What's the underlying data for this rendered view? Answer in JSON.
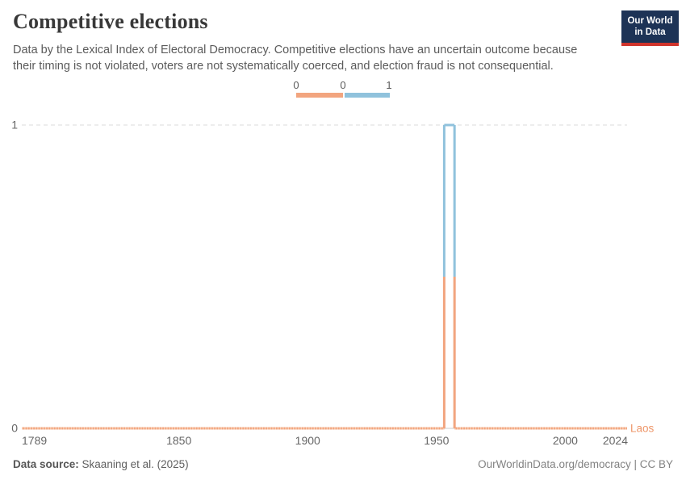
{
  "header": {
    "title": "Competitive elections",
    "subtitle": "Data by the Lexical Index of Electoral Democracy. Competitive elections have an uncertain outcome because their timing is not violated, voters are not systematically coerced, and election fraud is not consequential.",
    "logo": {
      "line1": "Our World",
      "line2": "in Data",
      "bg_color": "#1d3356",
      "accent_color": "#d0342c"
    }
  },
  "legend": {
    "edge_labels": [
      "0",
      "0",
      "1"
    ],
    "segments": [
      {
        "value": "0",
        "color": "#F2A57F"
      },
      {
        "value": "1",
        "color": "#90C2DC"
      }
    ]
  },
  "chart_data": {
    "type": "line",
    "title": "Competitive elections",
    "entity": "Laos",
    "xlim": [
      1789,
      2024
    ],
    "ylim": [
      0,
      1
    ],
    "x_ticks": [
      1789,
      1850,
      1900,
      1950,
      2000,
      2024
    ],
    "y_ticks": [
      0,
      1
    ],
    "grid": "dashed-top-solid-zero",
    "legend_position": "top-center",
    "series": [
      {
        "name": "Laos",
        "steps": [
          {
            "from": 1789,
            "to": 1953,
            "value": 0
          },
          {
            "from": 1953,
            "to": 1957,
            "value": 1
          },
          {
            "from": 1957,
            "to": 2024,
            "value": 0
          }
        ]
      }
    ],
    "value_colors": {
      "0": "#F2A57F",
      "1": "#90C2DC"
    },
    "texture_color": "#F9CDB2",
    "entity_label_color": "#EE9669",
    "gridline_color": "#DBDBDB",
    "axis_line_color": "#CCCCCC",
    "tick_label_color": "#666666"
  },
  "footer": {
    "source_label": "Data source:",
    "source": "Skaaning et al. (2025)",
    "attribution": "OurWorldinData.org/democracy | CC BY"
  }
}
